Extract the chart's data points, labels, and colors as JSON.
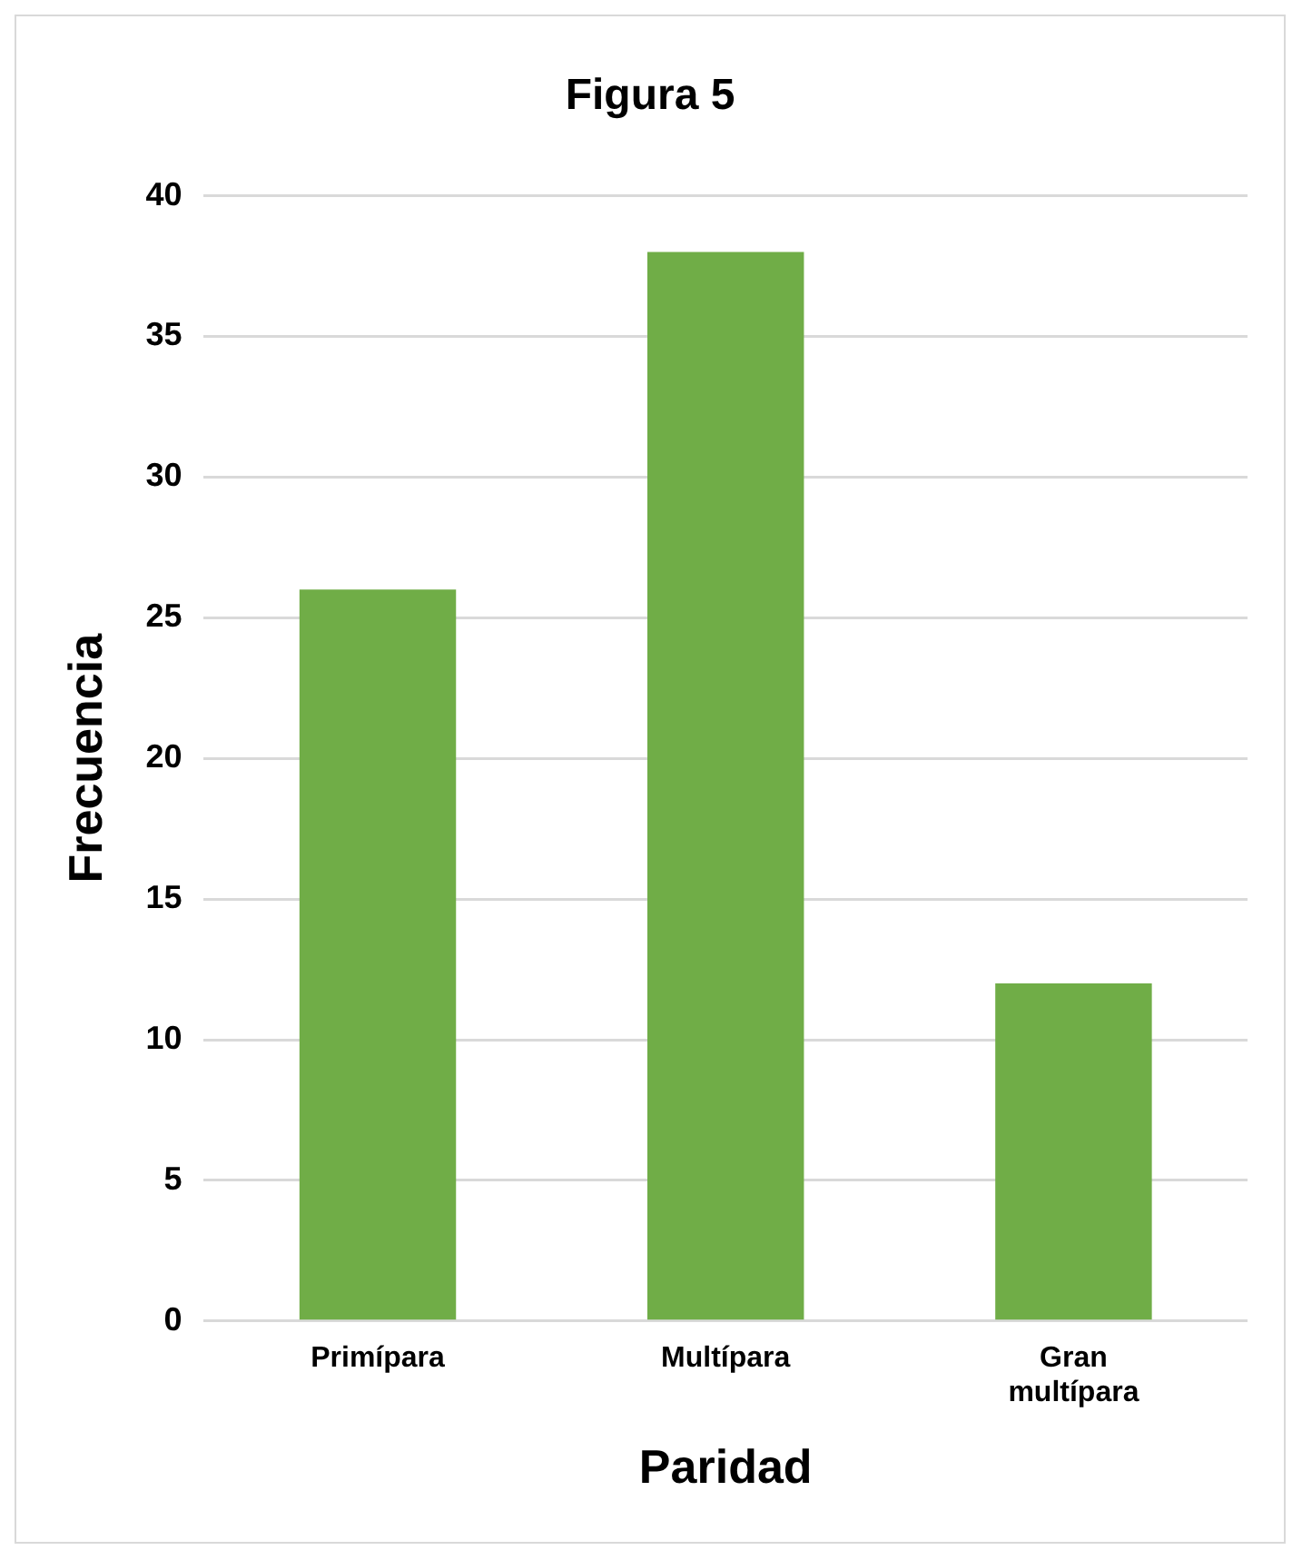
{
  "chart_data": {
    "type": "bar",
    "title": "Figura 5",
    "xlabel": "Paridad",
    "ylabel": "Frecuencia",
    "categories": [
      "Primípara",
      "Multípara",
      "Gran multípara"
    ],
    "values": [
      26,
      38,
      12
    ],
    "color": "#70ad47",
    "ylim": [
      0,
      40
    ],
    "yticks": [
      0,
      5,
      10,
      15,
      20,
      25,
      30,
      35,
      40
    ],
    "grid": "y",
    "legend": false
  }
}
